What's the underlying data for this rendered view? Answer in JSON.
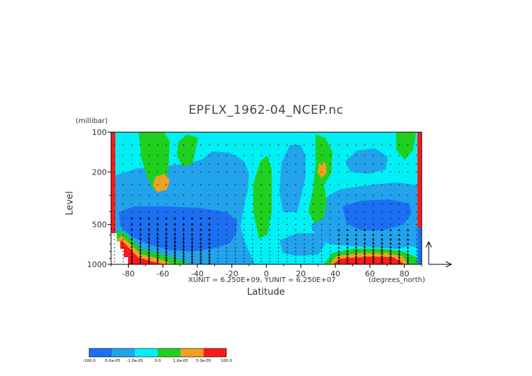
{
  "chart_data": {
    "type": "heatmap",
    "title": "EPFLX_1962-04_NCEP.nc",
    "xlabel": "Latitude",
    "ylabel": "Level",
    "y_unit": "(millibar)",
    "x_unit": "(degrees_north)",
    "vector_units": "XUNIT = 6.250E+09, YUNIT = 6.250E+07",
    "xlim": [
      -90,
      90
    ],
    "ylim": [
      1000,
      100
    ],
    "y_scale": "log",
    "x_ticks": [
      "-80",
      "-60",
      "-40",
      "-20",
      "0",
      "20",
      "40",
      "60",
      "80"
    ],
    "x_tick_values": [
      -80,
      -60,
      -40,
      -20,
      0,
      20,
      40,
      60,
      80
    ],
    "y_ticks": [
      "100",
      "200",
      "500",
      "1000"
    ],
    "y_tick_values": [
      100,
      200,
      500,
      1000
    ],
    "colorbar": {
      "labels": [
        "-100.0",
        "-5.0e-05",
        "-1.0e-05",
        "0.0",
        "1.0e-05",
        "5.0e-05",
        "100.0"
      ],
      "colors": [
        "#1c6ff2",
        "#22a3ec",
        "#00f0f5",
        "#20d020",
        "#f0a020",
        "#ff1a1a"
      ]
    },
    "colors": {
      "strong_negative": "#1c6ff2",
      "negative": "#22a3ec",
      "weak_negative": "#00f0f5",
      "weak_positive": "#20d020",
      "positive": "#f0a020",
      "strong_positive": "#ff1a1a"
    },
    "grid": false,
    "legend": "bottom-left colorbar"
  }
}
